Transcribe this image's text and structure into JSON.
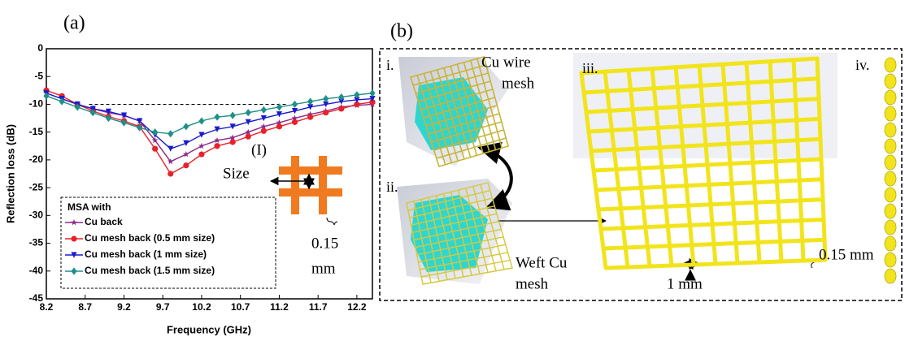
{
  "chart_data": {
    "type": "line",
    "panel_label": "(a)",
    "x_label": "Frequency (GHz)",
    "y_label": "Reflection loss (dB)",
    "xlim": [
      8.2,
      12.4
    ],
    "ylim": [
      -45,
      0
    ],
    "xticks": [
      8.2,
      8.7,
      9.2,
      9.7,
      10.2,
      10.7,
      11.2,
      11.7,
      12.2
    ],
    "yticks": [
      -45,
      -40,
      -35,
      -30,
      -25,
      -20,
      -15,
      -10,
      -5,
      0
    ],
    "reference_line": -10,
    "x": [
      8.2,
      8.4,
      8.6,
      8.8,
      9.0,
      9.2,
      9.4,
      9.6,
      9.8,
      10.0,
      10.2,
      10.4,
      10.6,
      10.8,
      11.0,
      11.2,
      11.4,
      11.6,
      11.8,
      12.0,
      12.2,
      12.4
    ],
    "legend_title": "MSA with",
    "series": [
      {
        "name": "Cu back",
        "color": "#8b2a8b",
        "marker": "star",
        "values": [
          -8,
          -9,
          -10,
          -10.8,
          -11.5,
          -12,
          -13,
          -16.5,
          -20.3,
          -19,
          -17.5,
          -16.5,
          -16,
          -15,
          -14,
          -13.3,
          -12.5,
          -11.8,
          -11.2,
          -10.5,
          -10.2,
          -10
        ]
      },
      {
        "name": "Cu mesh back (0.5 mm size)",
        "color": "#e8212a",
        "marker": "circle",
        "values": [
          -7.5,
          -8.5,
          -10,
          -11.2,
          -12.2,
          -13,
          -14,
          -18,
          -22.5,
          -21,
          -19,
          -17.5,
          -16.8,
          -15.8,
          -14.8,
          -14,
          -13.2,
          -12.3,
          -11.5,
          -10.8,
          -10,
          -9.6
        ]
      },
      {
        "name": "Cu mesh back (1 mm size)",
        "color": "#1a1acc",
        "marker": "triangle",
        "values": [
          -8,
          -9,
          -10,
          -10.8,
          -11.3,
          -12,
          -13,
          -15.5,
          -18,
          -17,
          -15.5,
          -14.5,
          -14,
          -13.2,
          -12.5,
          -11.8,
          -11.2,
          -10.5,
          -10,
          -9.5,
          -9.2,
          -9
        ]
      },
      {
        "name": "Cu mesh back (1.5 mm size)",
        "color": "#1f8f8a",
        "marker": "diamond",
        "values": [
          -8.5,
          -9.5,
          -10.5,
          -11.5,
          -12.5,
          -13.3,
          -14.2,
          -15,
          -15.3,
          -14,
          -13,
          -12.3,
          -12,
          -11.5,
          -11,
          -10.5,
          -10,
          -9.5,
          -9,
          -8.7,
          -8.3,
          -8
        ]
      }
    ],
    "annotations": {
      "inset_label": "(I)",
      "size": "Size",
      "thickness_value": "0.15",
      "thickness_unit": "mm"
    }
  },
  "panel_b": {
    "label": "(b)",
    "i": "i.",
    "ii": "ii.",
    "iii": "iii.",
    "iv": "iv.",
    "cu_wire_mesh": [
      "Cu wire",
      "mesh"
    ],
    "weft_cu_mesh": [
      "Weft Cu",
      "mesh"
    ],
    "spacing": "1 mm",
    "wire_thickness": "0.15 mm"
  }
}
